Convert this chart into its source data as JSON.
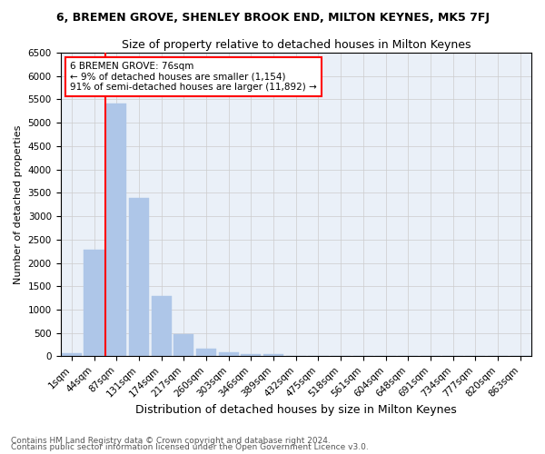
{
  "title": "6, BREMEN GROVE, SHENLEY BROOK END, MILTON KEYNES, MK5 7FJ",
  "subtitle": "Size of property relative to detached houses in Milton Keynes",
  "xlabel": "Distribution of detached houses by size in Milton Keynes",
  "ylabel": "Number of detached properties",
  "footnote1": "Contains HM Land Registry data © Crown copyright and database right 2024.",
  "footnote2": "Contains public sector information licensed under the Open Government Licence v3.0.",
  "categories": [
    "1sqm",
    "44sqm",
    "87sqm",
    "131sqm",
    "174sqm",
    "217sqm",
    "260sqm",
    "303sqm",
    "346sqm",
    "389sqm",
    "432sqm",
    "475sqm",
    "518sqm",
    "561sqm",
    "604sqm",
    "648sqm",
    "691sqm",
    "734sqm",
    "777sqm",
    "820sqm",
    "863sqm"
  ],
  "values": [
    75,
    2280,
    5420,
    3390,
    1290,
    480,
    165,
    80,
    55,
    45,
    0,
    0,
    0,
    0,
    0,
    0,
    0,
    0,
    0,
    0,
    0
  ],
  "bar_color": "#aec6e8",
  "bar_edgecolor": "#aec6e8",
  "vline_color": "red",
  "vline_x": 1.5,
  "annotation_line1": "6 BREMEN GROVE: 76sqm",
  "annotation_line2": "← 9% of detached houses are smaller (1,154)",
  "annotation_line3": "91% of semi-detached houses are larger (11,892) →",
  "grid_color": "#cccccc",
  "bg_color": "#eaf0f8",
  "ylim": [
    0,
    6500
  ],
  "title_fontsize": 9,
  "subtitle_fontsize": 9,
  "ylabel_fontsize": 8,
  "xlabel_fontsize": 9,
  "tick_fontsize": 7.5,
  "footnote_fontsize": 6.5
}
